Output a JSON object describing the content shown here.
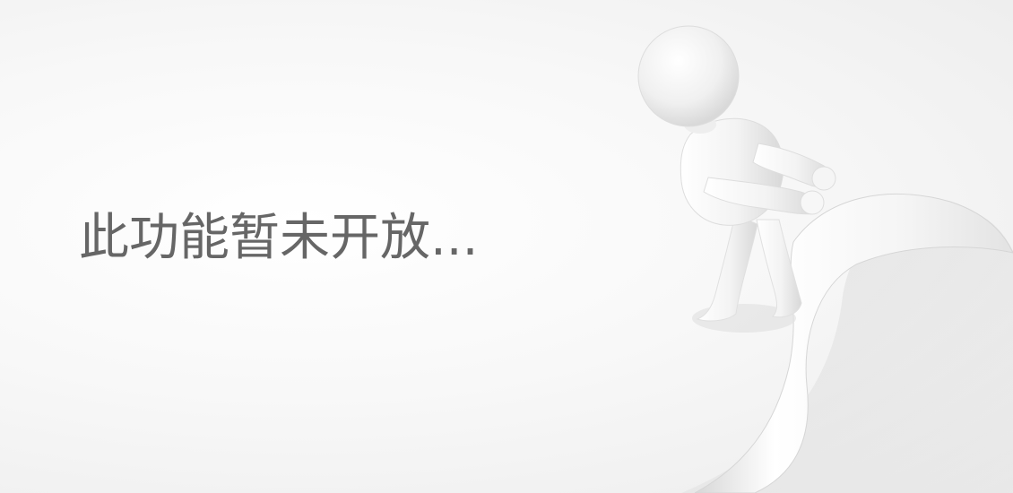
{
  "notice": {
    "text": "此功能暂未开放..."
  },
  "illustration": {
    "icon": "person-peeling-page-icon",
    "description_colors": {
      "figure": "#f6f6f6",
      "figure_shadow": "#d8d8d8",
      "page_curl": "#fbfbfb"
    }
  }
}
